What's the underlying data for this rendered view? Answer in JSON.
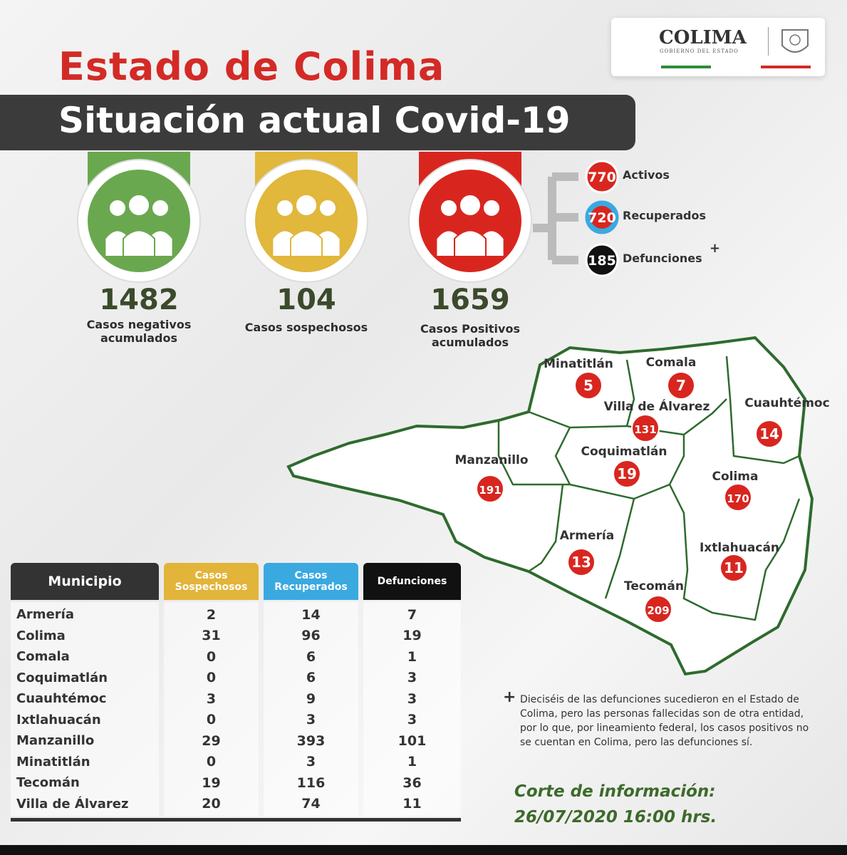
{
  "logo": {
    "name": "COLIMA",
    "subtitle": "GOBIERNO DEL ESTADO"
  },
  "header": {
    "title": "Estado de Colima",
    "subtitle": "Situación actual Covid-19"
  },
  "stats": [
    {
      "value": 1482,
      "label": "Casos negativos acumulados",
      "color": "#6aa84f"
    },
    {
      "value": 104,
      "label": "Casos sospechosos",
      "color": "#e1b73c"
    },
    {
      "value": 1659,
      "label": "Casos Positivos acumulados",
      "color": "#d8261f"
    }
  ],
  "positive_breakdown": [
    {
      "value": 770,
      "label": "Activos",
      "color": "#d8261f"
    },
    {
      "value": 720,
      "label": "Recuperados",
      "color": "#3aa9e0"
    },
    {
      "value": 185,
      "label": "Defunciones",
      "color": "#111111"
    }
  ],
  "map": {
    "municipalities": [
      {
        "name": "Minatitlán",
        "cases": 5
      },
      {
        "name": "Comala",
        "cases": 7
      },
      {
        "name": "Villa de Álvarez",
        "cases": 131
      },
      {
        "name": "Cuauhtémoc",
        "cases": 14
      },
      {
        "name": "Manzanillo",
        "cases": 191
      },
      {
        "name": "Coquimatlán",
        "cases": 19
      },
      {
        "name": "Colima",
        "cases": 170
      },
      {
        "name": "Armería",
        "cases": 13
      },
      {
        "name": "Ixtlahuacán",
        "cases": 11
      },
      {
        "name": "Tecomán",
        "cases": 209
      }
    ]
  },
  "table": {
    "headers": [
      "Municipio",
      "Casos Sospechosos",
      "Casos Recuperados",
      "Defunciones"
    ],
    "rows": [
      [
        "Armería",
        2,
        14,
        7
      ],
      [
        "Colima",
        31,
        96,
        19
      ],
      [
        "Comala",
        0,
        6,
        1
      ],
      [
        "Coquimatlán",
        0,
        6,
        3
      ],
      [
        "Cuauhtémoc",
        3,
        9,
        3
      ],
      [
        "Ixtlahuacán",
        0,
        3,
        3
      ],
      [
        "Manzanillo",
        29,
        393,
        101
      ],
      [
        "Minatitlán",
        0,
        3,
        1
      ],
      [
        "Tecomán",
        19,
        116,
        36
      ],
      [
        "Villa de Álvarez",
        20,
        74,
        11
      ]
    ]
  },
  "footnote": {
    "mark": "+",
    "text": "Dieciséis de las defunciones sucedieron en el Estado de Colima, pero las personas fallecidas son de otra entidad, por lo que, por lineamiento federal, los casos positivos no se cuentan en Colima, pero las defunciones sí."
  },
  "cutoff": {
    "label": "Corte de información:",
    "date": "26/07/2020 16:00 hrs."
  }
}
